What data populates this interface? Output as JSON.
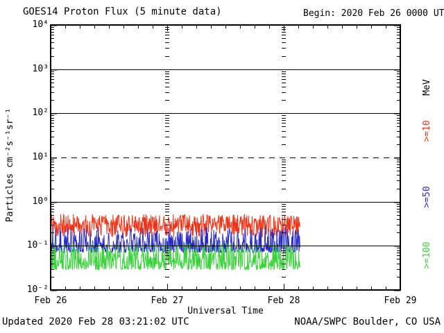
{
  "header": {
    "title": "GOES14 Proton Flux (5 minute data)",
    "begin_label": "Begin: 2020 Feb 26 0000 UTC"
  },
  "footer": {
    "updated": "Updated 2020 Feb 28 03:21:02 UTC",
    "source": "NOAA/SWPC Boulder, CO USA"
  },
  "legend": {
    "unit": "MeV",
    "items": [
      {
        "label": ">=10",
        "color": "#ee3418"
      },
      {
        "label": ">=50",
        "color": "#2a2ac8"
      },
      {
        "label": ">=100",
        "color": "#3cd23c"
      }
    ]
  },
  "chart_data": {
    "type": "line",
    "title": "GOES14 Proton Flux (5 minute data)",
    "xlabel": "Universal Time",
    "ylabel": "Particles cm⁻²s⁻¹sr⁻¹",
    "begin": "2020 Feb 26 0000 UTC",
    "x_tick_labels": [
      "Feb 26",
      "Feb 27",
      "Feb 28",
      "Feb 29"
    ],
    "y_tick_labels": [
      "10⁴",
      "10³",
      "10²",
      "10¹",
      "10⁰",
      "10⁻¹",
      "10⁻²"
    ],
    "y_log_min": -2,
    "y_log_max": 4,
    "x_total_hours": 72,
    "x_minor_tick_hours": 3,
    "data_end_hours": 51.35,
    "samples_per_hour": 12,
    "grid": "off",
    "legend_position": "right-margin",
    "hlines": [
      {
        "log": 3,
        "style": "solid"
      },
      {
        "log": 2,
        "style": "solid"
      },
      {
        "log": 1,
        "style": "dashed"
      },
      {
        "log": 0,
        "style": "solid"
      },
      {
        "log": -1,
        "style": "solid"
      }
    ],
    "day_marker_hours": [
      24,
      48
    ],
    "noise_seed": 20200226,
    "series": [
      {
        "name": ">=10 MeV",
        "color": "#ee3418",
        "typical_flux": 0.27,
        "min_flux": 0.16,
        "max_flux": 0.5,
        "log_base": -0.8,
        "log_span": 0.52,
        "shape_pow": 0.9
      },
      {
        "name": ">=50 MeV",
        "color": "#2a2ac8",
        "typical_flux": 0.1,
        "min_flux": 0.06,
        "max_flux": 0.27,
        "log_base": -1.15,
        "log_span": 0.58,
        "shape_pow": 2.2
      },
      {
        "name": ">=100 MeV",
        "color": "#3cd23c",
        "typical_flux": 0.05,
        "min_flux": 0.028,
        "max_flux": 0.12,
        "log_base": -1.54,
        "log_span": 0.62,
        "shape_pow": 1.8
      }
    ]
  }
}
